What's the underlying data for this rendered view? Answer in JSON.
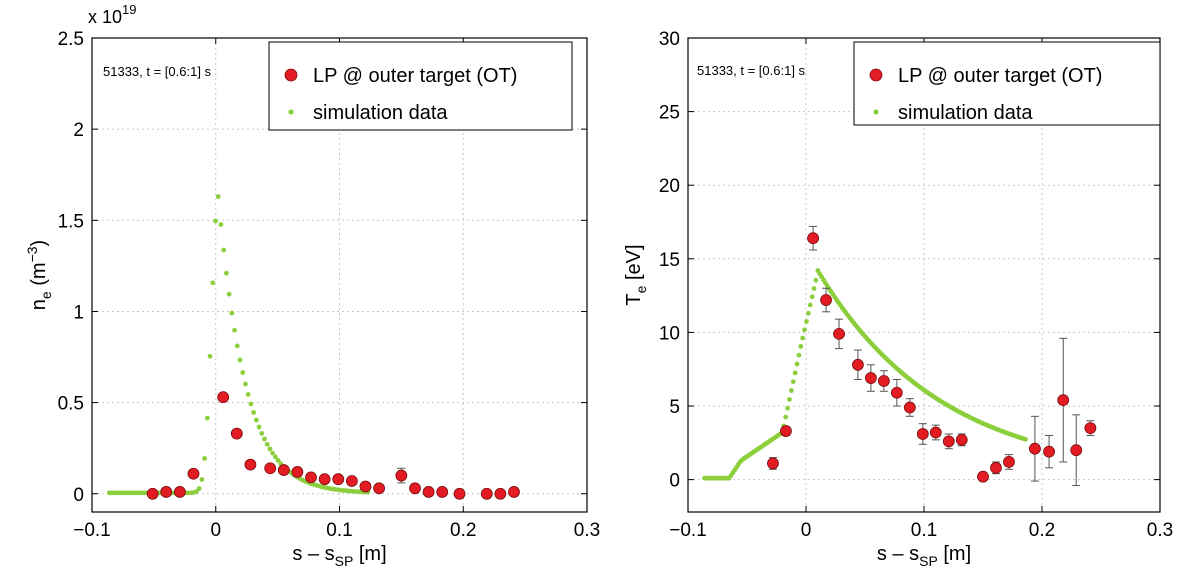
{
  "colors": {
    "measured_marker": "#e31b23",
    "measured_edge": "#7a0d10",
    "simulation_marker": "#8ccf3c",
    "grid": "#c8c8c8",
    "errorbar": "#555555"
  },
  "chart_data": [
    {
      "type": "scatter",
      "xlabel": {
        "main": "s – s",
        "sub": "SP",
        "tail": " [m]"
      },
      "ylabel": {
        "main": "n",
        "sub": "e",
        "unit_open": " (m",
        "sup": "−3",
        "unit_close": ")"
      },
      "exponent": {
        "base": "x 10",
        "sup": "19"
      },
      "annotation": "51333, t = [0.6:1] s",
      "xlim": [
        -0.1,
        0.3
      ],
      "ylim": [
        -0.1,
        2.5
      ],
      "x_ticks": [
        -0.1,
        0,
        0.1,
        0.2,
        0.3
      ],
      "x_tick_labels": [
        "−0.1",
        "0",
        "0.1",
        "0.2",
        "0.3"
      ],
      "y_ticks": [
        0,
        0.5,
        1,
        1.5,
        2,
        2.5
      ],
      "y_tick_labels": [
        "0",
        "0.5",
        "1",
        "1.5",
        "2",
        "2.5"
      ],
      "grid": true,
      "legend_placement": "top-right",
      "series": [
        {
          "name": "LP @ outer target (OT)",
          "kind": "measured",
          "points": [
            {
              "x": -0.051,
              "y": 0.0
            },
            {
              "x": -0.04,
              "y": 0.01
            },
            {
              "x": -0.029,
              "y": 0.01
            },
            {
              "x": -0.018,
              "y": 0.11
            },
            {
              "x": 0.006,
              "y": 0.53
            },
            {
              "x": 0.017,
              "y": 0.33
            },
            {
              "x": 0.028,
              "y": 0.16
            },
            {
              "x": 0.044,
              "y": 0.14
            },
            {
              "x": 0.055,
              "y": 0.13
            },
            {
              "x": 0.066,
              "y": 0.12
            },
            {
              "x": 0.077,
              "y": 0.09
            },
            {
              "x": 0.088,
              "y": 0.08
            },
            {
              "x": 0.099,
              "y": 0.08
            },
            {
              "x": 0.11,
              "y": 0.07
            },
            {
              "x": 0.121,
              "y": 0.04
            },
            {
              "x": 0.132,
              "y": 0.03
            },
            {
              "x": 0.15,
              "y": 0.1,
              "err": 0.04
            },
            {
              "x": 0.161,
              "y": 0.03
            },
            {
              "x": 0.172,
              "y": 0.01
            },
            {
              "x": 0.183,
              "y": 0.01
            },
            {
              "x": 0.197,
              "y": 0.0
            },
            {
              "x": 0.219,
              "y": 0.0
            },
            {
              "x": 0.23,
              "y": 0.0
            },
            {
              "x": 0.241,
              "y": 0.01
            }
          ]
        },
        {
          "name": "simulation data",
          "kind": "simulation",
          "curve": "ne"
        }
      ]
    },
    {
      "type": "scatter",
      "xlabel": {
        "main": "s – s",
        "sub": "SP",
        "tail": " [m]"
      },
      "ylabel": {
        "main": "T",
        "sub": "e",
        "tail": " [eV]"
      },
      "annotation": "51333, t = [0.6:1] s",
      "xlim": [
        -0.1,
        0.3
      ],
      "ylim": [
        -2.2,
        30
      ],
      "x_ticks": [
        -0.1,
        0,
        0.1,
        0.2,
        0.3
      ],
      "x_tick_labels": [
        "−0.1",
        "0",
        "0.1",
        "0.2",
        "0.3"
      ],
      "y_ticks": [
        0,
        5,
        10,
        15,
        20,
        25,
        30
      ],
      "y_tick_labels": [
        "0",
        "5",
        "10",
        "15",
        "20",
        "25",
        "30"
      ],
      "grid": true,
      "legend_placement": "top-right",
      "series": [
        {
          "name": "LP @ outer target (OT)",
          "kind": "measured",
          "points": [
            {
              "x": -0.028,
              "y": 1.1,
              "err": 0.4
            },
            {
              "x": -0.017,
              "y": 3.3,
              "err": 0.3
            },
            {
              "x": 0.006,
              "y": 16.4,
              "err": 0.8
            },
            {
              "x": 0.017,
              "y": 12.2,
              "err": 0.8
            },
            {
              "x": 0.028,
              "y": 9.9,
              "err": 1.0
            },
            {
              "x": 0.044,
              "y": 7.8,
              "err": 1.0
            },
            {
              "x": 0.055,
              "y": 6.9,
              "err": 0.9
            },
            {
              "x": 0.066,
              "y": 6.7,
              "err": 0.7
            },
            {
              "x": 0.077,
              "y": 5.9,
              "err": 0.9
            },
            {
              "x": 0.088,
              "y": 4.9,
              "err": 0.6
            },
            {
              "x": 0.099,
              "y": 3.1,
              "err": 0.7
            },
            {
              "x": 0.11,
              "y": 3.2,
              "err": 0.5
            },
            {
              "x": 0.121,
              "y": 2.6,
              "err": 0.5
            },
            {
              "x": 0.132,
              "y": 2.7,
              "err": 0.4
            },
            {
              "x": 0.15,
              "y": 0.2,
              "err": 0.2
            },
            {
              "x": 0.161,
              "y": 0.8,
              "err": 0.4
            },
            {
              "x": 0.172,
              "y": 1.2,
              "err": 0.5
            },
            {
              "x": 0.194,
              "y": 2.1,
              "err": 2.2
            },
            {
              "x": 0.206,
              "y": 1.9,
              "err": 1.1
            },
            {
              "x": 0.218,
              "y": 5.4,
              "err": 4.2
            },
            {
              "x": 0.229,
              "y": 2.0,
              "err": 2.4
            },
            {
              "x": 0.241,
              "y": 3.5,
              "err": 0.5
            }
          ]
        },
        {
          "name": "simulation data",
          "kind": "simulation",
          "curve": "te"
        }
      ]
    }
  ]
}
